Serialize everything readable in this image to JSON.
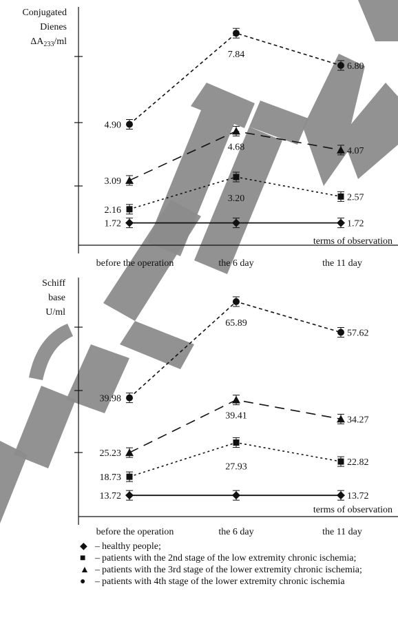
{
  "chart_data": [
    {
      "type": "line",
      "ylabel_lines": [
        "Conjugated",
        "Dienes",
        "ΔA",
        "233",
        "/ml"
      ],
      "xlabel": "terms of observation",
      "categories": [
        "before the operation",
        "the 6 day",
        "the 11 day"
      ],
      "ylim": [
        1.0,
        8.6
      ],
      "series": [
        {
          "key": "healthy",
          "marker": "diamond",
          "values": [
            1.72,
            1.72,
            1.72
          ],
          "labels": [
            "1.72",
            "",
            "1.72"
          ]
        },
        {
          "key": "stage2",
          "marker": "square",
          "values": [
            2.16,
            3.2,
            2.57
          ],
          "labels": [
            "2.16",
            "3.20",
            "2.57"
          ]
        },
        {
          "key": "stage3",
          "marker": "triangle",
          "values": [
            3.09,
            4.68,
            4.07
          ],
          "labels": [
            "3.09",
            "4.68",
            "4.07"
          ]
        },
        {
          "key": "stage4",
          "marker": "circle",
          "values": [
            4.9,
            7.84,
            6.8
          ],
          "labels": [
            "4.90",
            "7.84",
            "6.80"
          ]
        }
      ]
    },
    {
      "type": "line",
      "ylabel_lines": [
        "Schiff",
        "base",
        "U/ml"
      ],
      "xlabel": "terms of observation",
      "categories": [
        "before the operation",
        "the 6 day",
        "the 11 day"
      ],
      "ylim": [
        8.0,
        72.0
      ],
      "series": [
        {
          "key": "healthy",
          "marker": "diamond",
          "values": [
            13.72,
            13.72,
            13.72
          ],
          "labels": [
            "13.72",
            "",
            "13.72"
          ]
        },
        {
          "key": "stage2",
          "marker": "square",
          "values": [
            18.73,
            27.93,
            22.82
          ],
          "labels": [
            "18.73",
            "27.93",
            "22.82"
          ]
        },
        {
          "key": "stage3",
          "marker": "triangle",
          "values": [
            25.23,
            39.41,
            34.27
          ],
          "labels": [
            "25.23",
            "39.41",
            "34.27"
          ]
        },
        {
          "key": "stage4",
          "marker": "circle",
          "values": [
            39.98,
            65.89,
            57.62
          ],
          "labels": [
            "39.98",
            "65.89",
            "57.62"
          ]
        }
      ]
    }
  ],
  "legend": [
    {
      "symbol": "◆",
      "text": "healthy people;"
    },
    {
      "symbol": "■",
      "text": "patients with the 2nd stage of the low extremity chronic ischemia;"
    },
    {
      "symbol": "▲",
      "text": "patients with the 3rd stage of the lower extremity chronic ischemia;"
    },
    {
      "symbol": "●",
      "text": "patients with 4th stage of the lower extremity chronic ischemia"
    }
  ],
  "watermark_text": "РИЙ ГРГМУ",
  "colors": {
    "ink": "#111111",
    "watermark": "#8c8c8c"
  }
}
